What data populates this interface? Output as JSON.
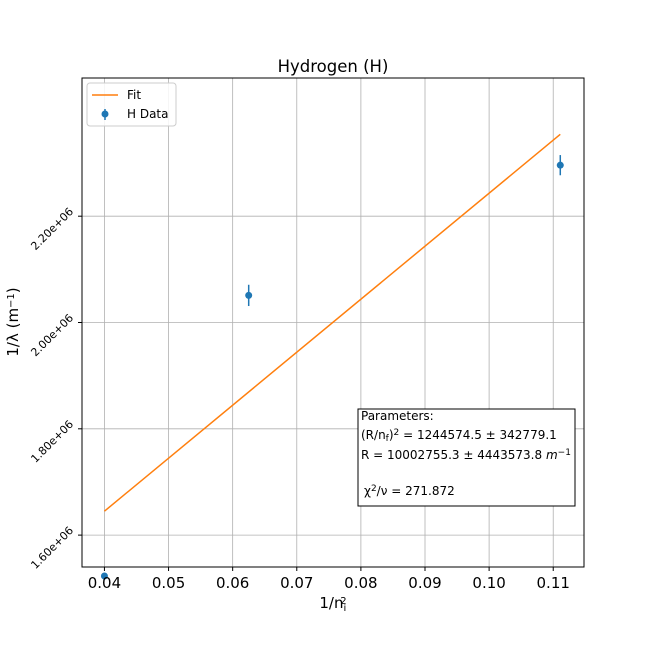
{
  "chart_data": {
    "type": "scatter",
    "title": "Hydrogen (H)",
    "xlabel": "1/n",
    "xlabel_sub": "i",
    "xlabel_sup": "2",
    "ylabel": "1/λ (m",
    "ylabel_sup": "−1",
    "ylabel_close": ")",
    "xlim": [
      0.0365,
      0.1148
    ],
    "ylim": [
      1540000,
      2460000
    ],
    "x_ticks": [
      0.04,
      0.05,
      0.06,
      0.07,
      0.08,
      0.09,
      0.1,
      0.11
    ],
    "x_tick_labels": [
      "0.04",
      "0.05",
      "0.06",
      "0.07",
      "0.08",
      "0.09",
      "0.10",
      "0.11"
    ],
    "y_ticks": [
      1600000,
      1800000,
      2000000,
      2200000
    ],
    "y_tick_labels": [
      "1.60e+06",
      "1.80e+06",
      "2.00e+06",
      "2.20e+06"
    ],
    "grid": true,
    "legend_position": "top-left",
    "series": [
      {
        "name": "H Data",
        "kind": "errorbar",
        "color": "#1f77b4",
        "x": [
          0.04,
          0.0625,
          0.1111
        ],
        "y": [
          1523000,
          2051000,
          2296000
        ],
        "yerr": [
          5000,
          20000,
          19000
        ]
      },
      {
        "name": "Fit",
        "kind": "line",
        "color": "#ff7f0e",
        "x": [
          0.04,
          0.1111
        ],
        "y": [
          1645000,
          2354000
        ]
      }
    ],
    "annotation": {
      "heading": "Parameters:",
      "line1_pre": "(R/n",
      "line1_sub": "f",
      "line1_close": ")",
      "line1_sup": "2",
      "line1_value": " = 1244574.5 ± 342779.1",
      "line2_pre": "R = 10002755.3 ± 4443573.8 ",
      "line2_unit": "m",
      "line2_sup": "−1",
      "line3_pre": "χ",
      "line3_sup": "2",
      "line3_value": "/ν = 271.872"
    }
  }
}
